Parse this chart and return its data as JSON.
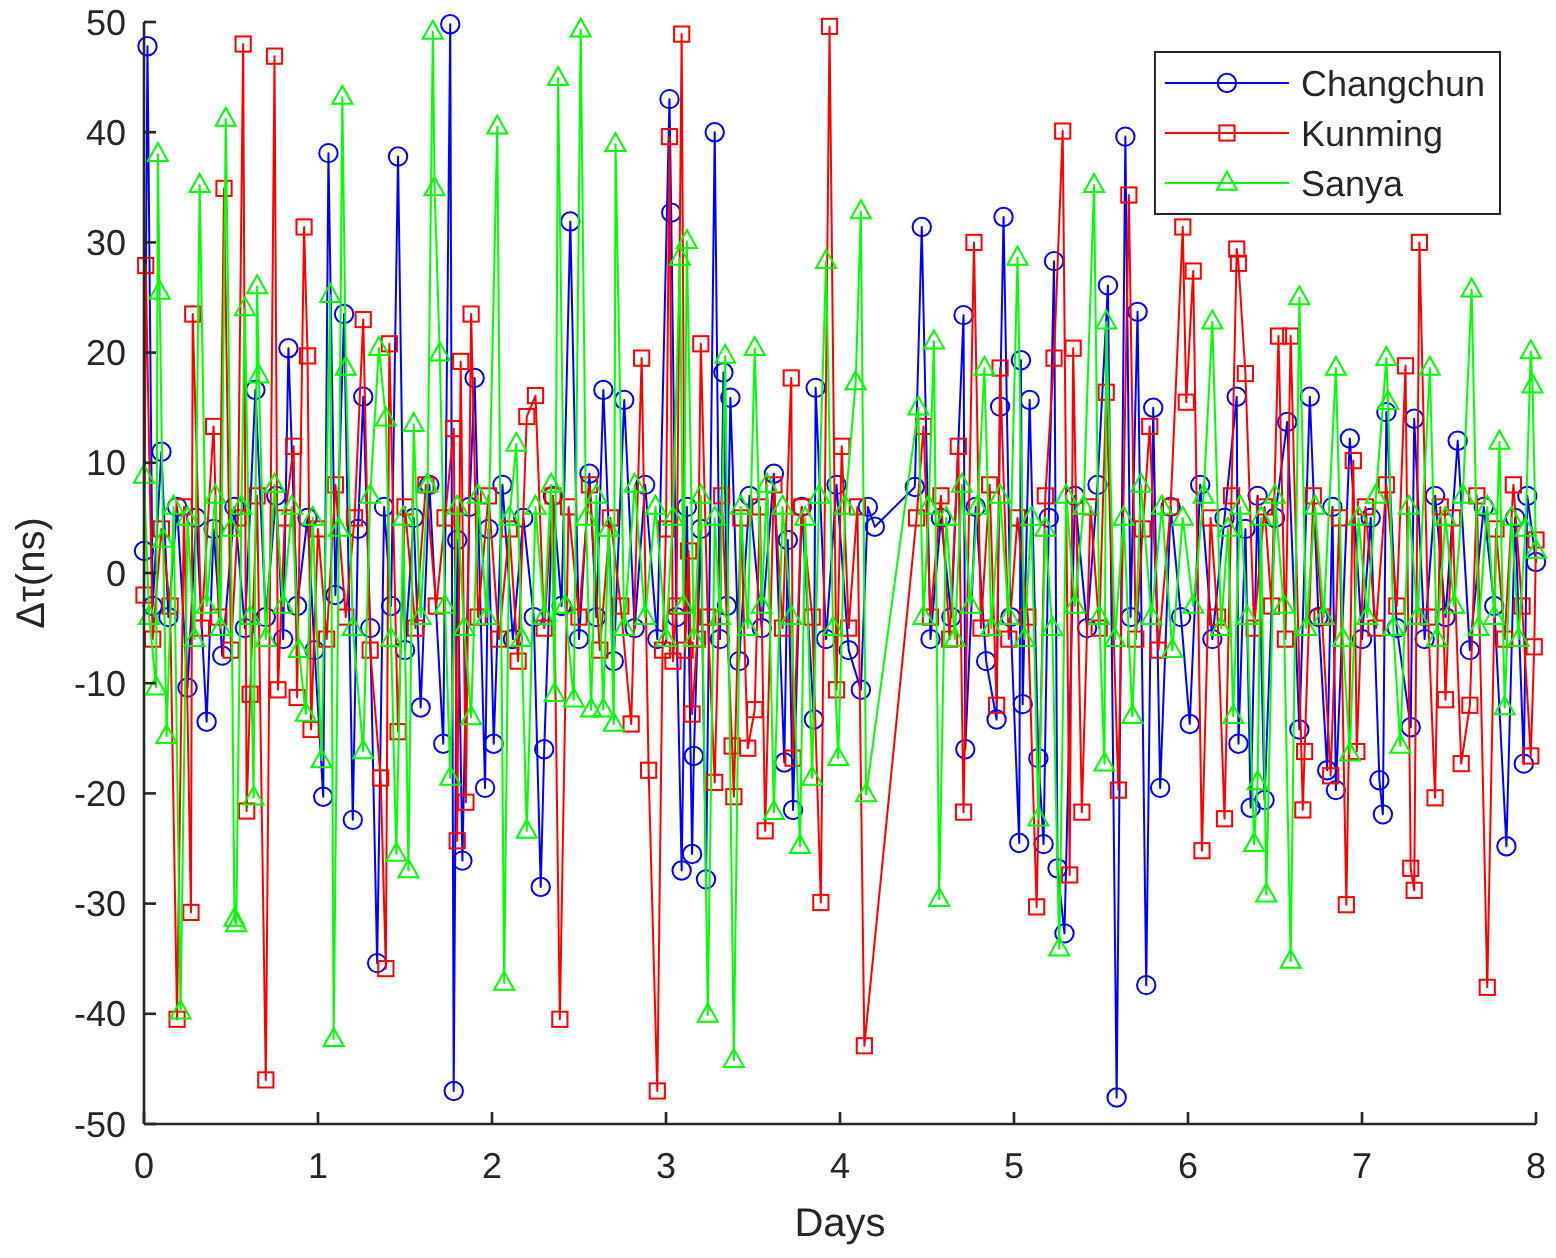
{
  "chart_data": {
    "type": "line",
    "xlabel": "Days",
    "ylabel": "Δτ(ns)",
    "xlim": [
      0,
      8
    ],
    "xticks": [
      0,
      1,
      2,
      3,
      4,
      5,
      6,
      7,
      8
    ],
    "ylim": [
      -50,
      50
    ],
    "yticks": [
      -50,
      -40,
      -30,
      -20,
      -10,
      0,
      10,
      20,
      30,
      40,
      50
    ],
    "legend": "top right",
    "line_style": "solid",
    "series": [
      {
        "name": "Changchun",
        "color": "#0000ff",
        "marker": "circle",
        "x": [
          0,
          0.02,
          0.05,
          0.1,
          0.14,
          0.19,
          0.25,
          0.3,
          0.36,
          0.4,
          0.45,
          0.52,
          0.58,
          0.64,
          0.7,
          0.76,
          0.8,
          0.83,
          0.88,
          0.94,
          0.98,
          1.03,
          1.06,
          1.1,
          1.15,
          1.2,
          1.23,
          1.26,
          1.3,
          1.34,
          1.38,
          1.42,
          1.46,
          1.5,
          1.55,
          1.59,
          1.64,
          1.72,
          1.76,
          1.78,
          1.8,
          1.83,
          1.87,
          1.9,
          1.96,
          1.98,
          2.01,
          2.06,
          2.12,
          2.18,
          2.24,
          2.28,
          2.3,
          2.35,
          2.4,
          2.45,
          2.5,
          2.56,
          2.6,
          2.64,
          2.7,
          2.76,
          2.82,
          2.88,
          2.95,
          3.02,
          3.03,
          3.06,
          3.09,
          3.12,
          3.15,
          3.16,
          3.2,
          3.23,
          3.28,
          3.31,
          3.33,
          3.35,
          3.37,
          3.42,
          3.48,
          3.55,
          3.62,
          3.68,
          3.7,
          3.73,
          3.78,
          3.85,
          3.86,
          3.92,
          3.98,
          4.05,
          4.12,
          4.16,
          4.2,
          4.43,
          4.47,
          4.52,
          4.58,
          4.64,
          4.71,
          4.72,
          4.78,
          4.84,
          4.9,
          4.92,
          4.94,
          4.98,
          5.03,
          5.04,
          5.05,
          5.09,
          5.14,
          5.17,
          5.2,
          5.23,
          5.25,
          5.29,
          5.35,
          5.42,
          5.48,
          5.54,
          5.59,
          5.64,
          5.67,
          5.71,
          5.76,
          5.8,
          5.84,
          5.9,
          5.96,
          6.01,
          6.07,
          6.14,
          6.21,
          6.28,
          6.29,
          6.33,
          6.36,
          6.4,
          6.44,
          6.5,
          6.57,
          6.64,
          6.7,
          6.75,
          6.8,
          6.83,
          6.85,
          6.93,
          7,
          7.05,
          7.1,
          7.12,
          7.14,
          7.2,
          7.28,
          7.3,
          7.36,
          7.42,
          7.48,
          7.55,
          7.62,
          7.7,
          7.76,
          7.83,
          7.88,
          7.93,
          7.95,
          8
        ],
        "values": [
          2,
          47.8,
          -3,
          11,
          -4,
          6,
          -10.4,
          5,
          -13.5,
          4,
          -7.5,
          6,
          -5,
          16.6,
          -4,
          7,
          -6,
          20.4,
          -3,
          5,
          -7,
          -20.3,
          38.1,
          -2,
          23.5,
          -22.4,
          4,
          16,
          -5,
          -35.4,
          6,
          -3,
          37.8,
          -7,
          5,
          -12.2,
          8,
          -15.5,
          49.8,
          -47,
          3,
          -26.1,
          6,
          17.7,
          -19.5,
          4,
          -15.5,
          8,
          -6,
          5,
          -4,
          -28.5,
          -16,
          7,
          -3,
          31.9,
          -6,
          9,
          -4,
          16.6,
          -8,
          15.7,
          -5,
          8,
          -6,
          43,
          32.7,
          -4,
          -27,
          6,
          -25.5,
          -16.6,
          4,
          -27.8,
          40,
          -6,
          18.2,
          -3,
          15.9,
          -8,
          7,
          -5,
          9,
          -17.2,
          3,
          -21.5,
          6,
          -13.3,
          16.8,
          -6,
          8,
          -7,
          -10.6,
          6,
          4.2,
          7.8,
          31.4,
          -6,
          5,
          -4,
          23.4,
          -16,
          6,
          -8,
          -13.3,
          15.1,
          32.3,
          -4,
          -24.5,
          19.3,
          -11.9,
          15.7,
          -16.8,
          -24.6,
          5,
          28.3,
          -26.8,
          -32.7,
          7,
          -5,
          8,
          26.1,
          -47.6,
          39.6,
          -4,
          23.7,
          -37.4,
          15,
          -19.5,
          6,
          -4,
          -13.7,
          8,
          -6,
          5,
          16,
          -15.5,
          4,
          -21.3,
          7,
          -20.6,
          5,
          13.7,
          -14.2,
          16,
          -4,
          -17.9,
          6,
          -19.7,
          12.2,
          -6,
          5,
          -18.8,
          -21.9,
          14.6,
          -5,
          -14,
          14,
          -6,
          7,
          -4,
          12,
          -7,
          6,
          -3,
          -24.8,
          5,
          -17.3,
          7,
          1
        ]
      },
      {
        "name": "Kunming",
        "color": "#ff0000",
        "marker": "square",
        "x": [
          0,
          0.01,
          0.05,
          0.1,
          0.15,
          0.19,
          0.23,
          0.27,
          0.28,
          0.33,
          0.4,
          0.43,
          0.46,
          0.5,
          0.54,
          0.57,
          0.59,
          0.61,
          0.65,
          0.7,
          0.75,
          0.77,
          0.81,
          0.86,
          0.88,
          0.92,
          0.94,
          0.96,
          1,
          1.05,
          1.1,
          1.16,
          1.21,
          1.26,
          1.3,
          1.36,
          1.39,
          1.41,
          1.46,
          1.5,
          1.56,
          1.62,
          1.68,
          1.73,
          1.78,
          1.8,
          1.82,
          1.85,
          1.88,
          1.92,
          1.98,
          2.04,
          2.1,
          2.15,
          2.2,
          2.25,
          2.3,
          2.35,
          2.39,
          2.44,
          2.5,
          2.56,
          2.62,
          2.68,
          2.74,
          2.8,
          2.86,
          2.9,
          2.95,
          2.98,
          3,
          3.02,
          3.04,
          3.06,
          3.09,
          3.11,
          3.13,
          3.15,
          3.18,
          3.2,
          3.24,
          3.28,
          3.32,
          3.38,
          3.39,
          3.43,
          3.47,
          3.51,
          3.54,
          3.57,
          3.62,
          3.67,
          3.72,
          3.73,
          3.78,
          3.84,
          3.89,
          3.94,
          3.98,
          4.01,
          4.05,
          4.1,
          4.14,
          4.44,
          4.48,
          4.52,
          4.58,
          4.63,
          4.68,
          4.71,
          4.77,
          4.81,
          4.86,
          4.9,
          4.92,
          4.97,
          5.02,
          5.08,
          5.13,
          5.18,
          5.23,
          5.28,
          5.32,
          5.34,
          5.39,
          5.44,
          5.49,
          5.53,
          5.6,
          5.66,
          5.7,
          5.74,
          5.78,
          5.83,
          5.9,
          5.97,
          5.99,
          6.03,
          6.08,
          6.13,
          6.17,
          6.21,
          6.25,
          6.28,
          6.29,
          6.33,
          6.38,
          6.44,
          6.48,
          6.52,
          6.56,
          6.59,
          6.66,
          6.67,
          6.72,
          6.77,
          6.82,
          6.87,
          6.91,
          6.95,
          6.97,
          7.02,
          7.08,
          7.14,
          7.2,
          7.25,
          7.28,
          7.3,
          7.33,
          7.38,
          7.42,
          7.45,
          7.48,
          7.52,
          7.57,
          7.62,
          7.66,
          7.72,
          7.77,
          7.82,
          7.87,
          7.92,
          7.97,
          7.99,
          8
        ],
        "values": [
          -2,
          27.9,
          -6,
          4,
          -3,
          -40.5,
          6,
          -30.8,
          23.5,
          -5,
          13.3,
          -4,
          34.9,
          -7,
          5,
          48,
          -21.6,
          -11,
          7,
          -46,
          46.9,
          -10.6,
          5,
          11.5,
          -11.3,
          31.4,
          19.7,
          -14.2,
          4,
          -6,
          8,
          -4,
          5,
          23,
          -7,
          -18.6,
          -35.9,
          20.8,
          -14.4,
          6,
          -5,
          8,
          -3,
          5,
          13.1,
          -24.3,
          19.2,
          -20.8,
          23.5,
          -4,
          7,
          -6,
          4,
          -8,
          14.2,
          16.1,
          -5,
          7,
          -40.5,
          6,
          -4,
          8,
          -7,
          5,
          -3,
          -13.7,
          19.5,
          -17.9,
          -47,
          -7,
          4,
          39.6,
          -8,
          -3,
          48.9,
          -7,
          2,
          -12.8,
          -6,
          20.8,
          -4,
          -19,
          7,
          -15.7,
          -20.3,
          5,
          -15.9,
          -12.4,
          6,
          -23.4,
          8,
          -5,
          17.7,
          -16.8,
          6,
          -4,
          -29.9,
          49.6,
          -10.6,
          11.5,
          -5,
          6,
          -42.9,
          5,
          13.3,
          -4,
          7,
          -6,
          11.5,
          -21.7,
          30,
          -5,
          8,
          -12,
          18.6,
          -6,
          5,
          -4,
          -30.3,
          7,
          19.5,
          40.1,
          -27.4,
          20.4,
          -21.7,
          6,
          -5,
          16.4,
          -19.7,
          34.3,
          -6,
          4,
          13.3,
          -7,
          6,
          31.4,
          15.5,
          27.4,
          -25.2,
          5,
          -4,
          -22.3,
          7,
          29.4,
          28.1,
          18.1,
          -5,
          6,
          -3,
          21.5,
          -6,
          21.5,
          -21.5,
          -16.2,
          7,
          -4,
          -18.4,
          5,
          -30.1,
          10.2,
          -16.2,
          6,
          -5,
          8,
          -3,
          18.8,
          -26.8,
          -28.8,
          30,
          -4,
          -20.4,
          6,
          -11.5,
          5,
          -17.3,
          -12,
          7,
          -37.6,
          4,
          -6,
          8,
          -3,
          -16.6,
          -6.7,
          3
        ]
      },
      {
        "name": "Sanya",
        "color": "#00ff00",
        "marker": "triangle",
        "x": [
          0,
          0.03,
          0.07,
          0.08,
          0.09,
          0.11,
          0.13,
          0.17,
          0.21,
          0.25,
          0.29,
          0.32,
          0.36,
          0.41,
          0.44,
          0.47,
          0.5,
          0.52,
          0.53,
          0.56,
          0.58,
          0.61,
          0.63,
          0.65,
          0.66,
          0.7,
          0.75,
          0.8,
          0.85,
          0.89,
          0.93,
          0.97,
          1.02,
          1.07,
          1.09,
          1.12,
          1.14,
          1.16,
          1.2,
          1.26,
          1.3,
          1.35,
          1.39,
          1.42,
          1.45,
          1.49,
          1.52,
          1.55,
          1.59,
          1.63,
          1.66,
          1.67,
          1.7,
          1.73,
          1.76,
          1.8,
          1.84,
          1.88,
          1.92,
          1.97,
          2.03,
          2.07,
          2.1,
          2.14,
          2.17,
          2.2,
          2.25,
          2.3,
          2.34,
          2.36,
          2.38,
          2.42,
          2.47,
          2.51,
          2.54,
          2.57,
          2.6,
          2.64,
          2.67,
          2.7,
          2.71,
          2.76,
          2.82,
          2.88,
          2.94,
          3,
          3.04,
          3.08,
          3.1,
          3.12,
          3.16,
          3.2,
          3.24,
          3.28,
          3.31,
          3.34,
          3.39,
          3.43,
          3.47,
          3.51,
          3.55,
          3.58,
          3.62,
          3.67,
          3.72,
          3.77,
          3.8,
          3.84,
          3.88,
          3.92,
          3.96,
          3.99,
          4.03,
          4.09,
          4.12,
          4.15,
          4.45,
          4.48,
          4.51,
          4.54,
          4.57,
          4.61,
          4.66,
          4.7,
          4.75,
          4.79,
          4.83,
          4.87,
          4.92,
          4.97,
          5.02,
          5.06,
          5.1,
          5.14,
          5.18,
          5.22,
          5.26,
          5.3,
          5.35,
          5.4,
          5.46,
          5.49,
          5.52,
          5.53,
          5.58,
          5.63,
          5.68,
          5.73,
          5.79,
          5.85,
          5.91,
          5.97,
          6.03,
          6.09,
          6.14,
          6.19,
          6.23,
          6.26,
          6.3,
          6.34,
          6.38,
          6.4,
          6.42,
          6.45,
          6.5,
          6.55,
          6.59,
          6.64,
          6.68,
          6.73,
          6.78,
          6.85,
          6.89,
          6.93,
          6.98,
          7.03,
          7.08,
          7.14,
          7.15,
          7.18,
          7.22,
          7.27,
          7.32,
          7.39,
          7.43,
          7.48,
          7.53,
          7.58,
          7.63,
          7.67,
          7.72,
          7.76,
          7.79,
          7.82,
          7.86,
          7.9,
          7.94,
          7.97,
          7.98,
          8
        ],
        "values": [
          8.8,
          -4,
          -10.4,
          38,
          25.5,
          3,
          -14.8,
          6,
          -39.8,
          5,
          -6,
          35.2,
          -3,
          7,
          -5,
          41.2,
          4,
          -31.4,
          -31.9,
          6,
          24,
          -4,
          -20.4,
          26,
          17.9,
          -6,
          8,
          -3,
          6,
          -7,
          -12.8,
          5,
          -17,
          25.2,
          -42.3,
          4,
          43.2,
          18.6,
          -5,
          -16.2,
          7,
          20.4,
          14,
          -6,
          -25.5,
          5,
          -27,
          13.5,
          -4,
          8,
          49.1,
          34.9,
          19.9,
          -3,
          -18.6,
          6,
          -5,
          -13.1,
          7,
          -4,
          40.5,
          -37.2,
          5,
          11.7,
          -6,
          -23.4,
          6,
          -4,
          8,
          -11,
          44.9,
          -3,
          -11.5,
          49.3,
          5,
          -12.4,
          7,
          -12.4,
          4,
          -13.7,
          38.9,
          -5,
          8,
          -4,
          6,
          -6,
          5,
          28.6,
          -3,
          30.1,
          -6,
          7,
          -40.1,
          5,
          -4,
          19.7,
          -44.2,
          6,
          -5,
          20.4,
          -3,
          8,
          -21.7,
          6,
          -4,
          -24.8,
          5,
          -18.6,
          7,
          28.3,
          -5,
          -16.8,
          6,
          17.3,
          32.8,
          -20.1,
          15,
          -4,
          6,
          21,
          -29.6,
          5,
          -6,
          8,
          -3,
          6,
          18.6,
          -5,
          7,
          -4,
          28.6,
          -6,
          5,
          -22.3,
          4,
          -5,
          -34.1,
          7,
          -3,
          6,
          35.2,
          -4,
          -17.3,
          22.8,
          -6,
          5,
          -13,
          8,
          -4,
          6,
          -7,
          5,
          -3,
          7,
          22.8,
          -5,
          4,
          -13,
          6,
          -4,
          -24.6,
          -19,
          5,
          -29.2,
          7,
          -3,
          -35.2,
          25,
          -5,
          6,
          -4,
          18.6,
          -6,
          -16.4,
          5,
          -4,
          7,
          19.5,
          15.5,
          -5,
          -15.7,
          6,
          -4,
          18.6,
          -6,
          5,
          -3,
          7,
          25.7,
          -5,
          6,
          -4,
          11.9,
          -12.2,
          5,
          -6,
          4,
          20.1,
          17,
          2
        ]
      }
    ]
  }
}
